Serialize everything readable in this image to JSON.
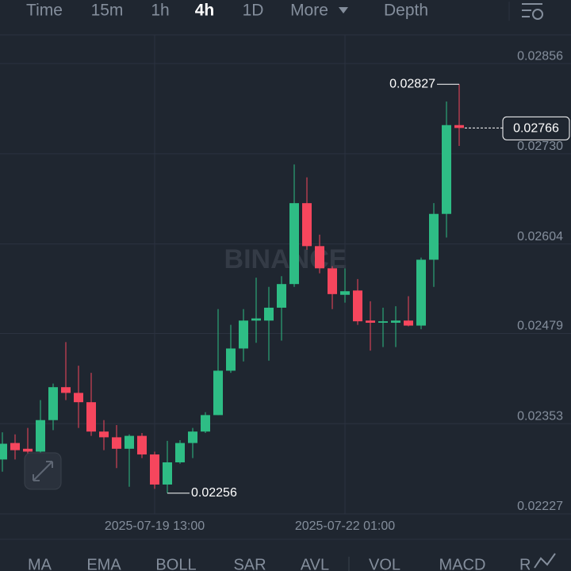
{
  "toolbar": {
    "items": [
      "Time",
      "15m",
      "1h",
      "4h",
      "1D",
      "More",
      "Depth"
    ],
    "active": "4h"
  },
  "watermark": "BINANCE",
  "indicators": [
    "MA",
    "EMA",
    "BOLL",
    "SAR",
    "AVL",
    "VOL",
    "MACD",
    "RSI"
  ],
  "chart_data": {
    "type": "candlestick",
    "categories": [
      null,
      null,
      null,
      null,
      null,
      null,
      null,
      null,
      null,
      null,
      null,
      null,
      "2025-07-19 13:00",
      null,
      null,
      null,
      null,
      null,
      null,
      null,
      null,
      null,
      null,
      null,
      null,
      null,
      null,
      "2025-07-22 01:00",
      null,
      null,
      null,
      null,
      null,
      null,
      null,
      null,
      null
    ],
    "open": [
      0.02303,
      0.02326,
      0.02318,
      0.02314,
      0.02358,
      0.02404,
      0.02396,
      0.02383,
      0.02342,
      0.02334,
      0.02318,
      0.02336,
      0.0231,
      0.02268,
      0.02299,
      0.02326,
      0.02342,
      0.02365,
      0.02427,
      0.02458,
      0.02497,
      0.02497,
      0.02515,
      0.02548,
      0.02661,
      0.02601,
      0.0257,
      0.02533,
      0.02539,
      0.02497,
      0.02494,
      0.02494,
      0.02497,
      0.0249,
      0.02582,
      0.02646,
      0.0277
    ],
    "high": [
      0.02341,
      0.02338,
      0.02347,
      0.02386,
      0.02409,
      0.02467,
      0.02434,
      0.02424,
      0.02358,
      0.02351,
      0.02338,
      0.0234,
      0.02314,
      0.02329,
      0.0233,
      0.02347,
      0.02369,
      0.02513,
      0.02491,
      0.02513,
      0.02557,
      0.02544,
      0.02559,
      0.02715,
      0.02697,
      0.02617,
      0.02573,
      0.0257,
      0.02555,
      0.02524,
      0.02515,
      0.02517,
      0.02531,
      0.02585,
      0.02661,
      0.02803,
      0.02827
    ],
    "low": [
      0.02286,
      0.02303,
      0.02305,
      0.02311,
      0.02344,
      0.02386,
      0.02347,
      0.02336,
      0.02316,
      0.02291,
      0.02265,
      0.02305,
      0.02262,
      0.02256,
      0.02297,
      0.02305,
      0.0234,
      0.02365,
      0.02424,
      0.0244,
      0.02466,
      0.02441,
      0.02469,
      0.02544,
      0.02596,
      0.02563,
      0.02513,
      0.02522,
      0.02491,
      0.02455,
      0.0246,
      0.0246,
      0.02489,
      0.02485,
      0.02544,
      0.02613,
      0.02741
    ],
    "close": [
      0.02325,
      0.02316,
      0.02314,
      0.02358,
      0.02404,
      0.02396,
      0.02383,
      0.02342,
      0.02334,
      0.02318,
      0.02336,
      0.0231,
      0.02268,
      0.02299,
      0.02326,
      0.02342,
      0.02365,
      0.02427,
      0.02458,
      0.02497,
      0.025,
      0.02515,
      0.02548,
      0.02661,
      0.02601,
      0.0257,
      0.02534,
      0.02538,
      0.02496,
      0.02494,
      0.02496,
      0.02497,
      0.0249,
      0.02582,
      0.02646,
      0.0277,
      0.02766
    ],
    "colors": {
      "up": "#2ebd85",
      "down": "#f6465d"
    },
    "ylim": [
      0.02227,
      0.02896
    ],
    "yticks": [
      0.02856,
      {
        "value": 0.0273,
        "label": "0.02730"
      },
      0.02604,
      0.02479,
      0.02353,
      0.02227
    ],
    "grid": true,
    "annotations": {
      "high": 0.02827,
      "low": 0.02256,
      "last": 0.02766
    }
  }
}
